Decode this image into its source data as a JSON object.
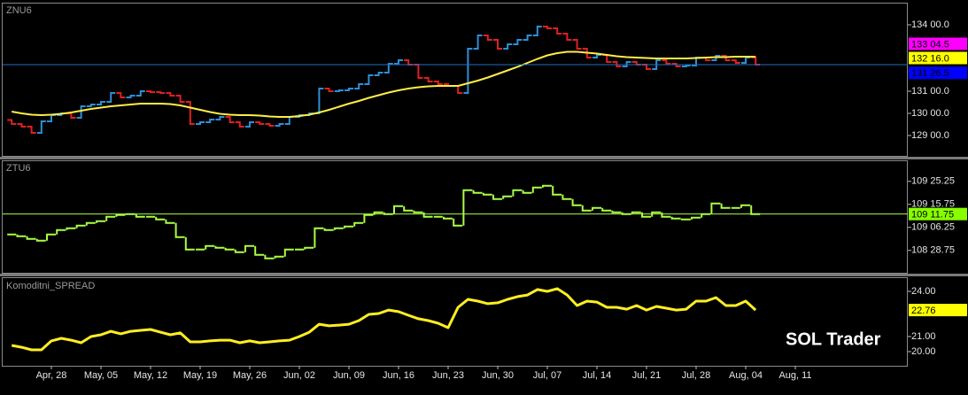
{
  "chart_data": [
    {
      "type": "ohlc",
      "title": "ZNU6",
      "categories": [
        null,
        null,
        null,
        null,
        "Apr, 28",
        null,
        null,
        null,
        null,
        "May, 05",
        null,
        null,
        null,
        null,
        "May, 12",
        null,
        null,
        null,
        null,
        "May, 19",
        null,
        null,
        null,
        null,
        "May, 26",
        null,
        null,
        null,
        null,
        "Jun, 02",
        null,
        null,
        null,
        null,
        "Jun, 09",
        null,
        null,
        null,
        null,
        "Jun, 16",
        null,
        null,
        null,
        null,
        "Jun, 23",
        null,
        null,
        null,
        null,
        "Jun, 30",
        null,
        null,
        null,
        null,
        "Jul, 07",
        null,
        null,
        null,
        null,
        "Jul, 14",
        null,
        null,
        null,
        null,
        "Jul, 21",
        null,
        null,
        null,
        null,
        "Jul, 28",
        null,
        null,
        null,
        null,
        "Aug, 04",
        null,
        null,
        null,
        null,
        "Aug, 11"
      ],
      "open": [
        129.7,
        129.52,
        129.4,
        129.12,
        129.64,
        129.92,
        130.0,
        129.8,
        130.32,
        130.4,
        130.52,
        130.92,
        130.72,
        130.8,
        131.0,
        130.96,
        130.92,
        130.8,
        130.52,
        129.52,
        129.6,
        129.72,
        129.84,
        129.6,
        129.4,
        129.6,
        129.52,
        129.44,
        129.52,
        129.84,
        129.92,
        130.0,
        131.12,
        131.0,
        131.04,
        131.12,
        131.32,
        131.72,
        131.84,
        132.24,
        132.4,
        132.2,
        131.6,
        131.44,
        131.32,
        131.24,
        130.92,
        132.92,
        133.52,
        133.32,
        132.92,
        133.12,
        133.32,
        133.52,
        133.92,
        133.84,
        133.6,
        133.32,
        132.92,
        132.52,
        132.64,
        132.32,
        132.12,
        132.32,
        132.2,
        132.0,
        132.4,
        132.24,
        132.12,
        132.16,
        132.52,
        132.4,
        132.6,
        132.4,
        132.28,
        132.52,
        null,
        null,
        null,
        null
      ],
      "close": [
        129.52,
        129.4,
        129.12,
        129.64,
        129.92,
        130.0,
        129.8,
        130.32,
        130.4,
        130.52,
        130.92,
        130.72,
        130.8,
        131.0,
        130.96,
        130.92,
        130.8,
        130.52,
        129.52,
        129.6,
        129.72,
        129.84,
        129.6,
        129.4,
        129.6,
        129.52,
        129.44,
        129.52,
        129.84,
        129.92,
        130.0,
        131.12,
        131.0,
        131.04,
        131.12,
        131.32,
        131.72,
        131.84,
        132.24,
        132.4,
        132.2,
        131.6,
        131.44,
        131.32,
        131.24,
        130.92,
        132.92,
        133.52,
        133.32,
        132.92,
        133.12,
        133.32,
        133.52,
        133.92,
        133.84,
        133.6,
        133.32,
        132.92,
        132.52,
        132.64,
        132.32,
        132.12,
        132.32,
        132.2,
        132.0,
        132.4,
        132.24,
        132.12,
        132.16,
        132.52,
        132.4,
        132.6,
        132.4,
        132.28,
        132.52,
        132.2,
        null,
        null,
        null,
        null
      ],
      "up_color": "#2e8fd8",
      "down_color": "#e02020",
      "line_color": "#1e6fc8",
      "ma": {
        "color": "#ffee44",
        "values": [
          130.08,
          130.0,
          129.94,
          129.92,
          129.94,
          129.98,
          130.04,
          130.12,
          130.2,
          130.26,
          130.32,
          130.36,
          130.4,
          130.44,
          130.44,
          130.44,
          130.42,
          130.36,
          130.26,
          130.16,
          130.06,
          129.98,
          129.94,
          129.92,
          129.92,
          129.9,
          129.86,
          129.84,
          129.84,
          129.88,
          129.94,
          130.04,
          130.16,
          130.3,
          130.44,
          130.56,
          130.7,
          130.82,
          130.94,
          131.04,
          131.12,
          131.18,
          131.22,
          131.24,
          131.24,
          131.24,
          131.36,
          131.48,
          131.62,
          131.78,
          131.94,
          132.1,
          132.28,
          132.46,
          132.62,
          132.72,
          132.78,
          132.78,
          132.74,
          132.7,
          132.64,
          132.58,
          132.54,
          132.52,
          132.5,
          132.48,
          132.48,
          132.48,
          132.48,
          132.5,
          132.52,
          132.54,
          132.54,
          132.56,
          132.56,
          132.56,
          null,
          null,
          null,
          null
        ]
      },
      "ylim": [
        128.08,
        134.92
      ],
      "yticks": [
        {
          "value": 129,
          "label": "129 00.0"
        },
        {
          "value": 130,
          "label": "130 00.0"
        },
        {
          "value": 131,
          "label": "131 00.0"
        },
        {
          "value": 134,
          "label": "134 00.0"
        }
      ],
      "price_labels": [
        {
          "value": 133.140625,
          "label": "133 04.5",
          "color": "#ff00ff"
        },
        {
          "value": 132.5,
          "label": "132 16.0",
          "color": "#ffff00"
        },
        {
          "value": 131.828125,
          "label": "131 26.5",
          "color": "#0000ff"
        }
      ]
    },
    {
      "type": "step",
      "title": "ZTU6",
      "color": "#aaff44",
      "values": [
        109.104,
        109.081,
        109.047,
        109.024,
        109.104,
        109.161,
        109.184,
        109.218,
        109.252,
        109.275,
        109.332,
        109.355,
        109.367,
        109.332,
        109.332,
        109.298,
        109.252,
        109.07,
        108.91,
        108.91,
        108.956,
        108.933,
        108.91,
        108.876,
        108.956,
        108.841,
        108.796,
        108.819,
        108.91,
        108.91,
        108.933,
        109.184,
        109.161,
        109.184,
        109.207,
        109.252,
        109.355,
        109.389,
        109.367,
        109.469,
        109.412,
        109.389,
        109.332,
        109.332,
        109.309,
        109.218,
        109.675,
        109.641,
        109.618,
        109.561,
        109.595,
        109.675,
        109.641,
        109.709,
        109.732,
        109.618,
        109.561,
        109.481,
        109.412,
        109.446,
        109.412,
        109.389,
        109.367,
        109.389,
        109.332,
        109.389,
        109.332,
        109.309,
        109.298,
        109.321,
        109.367,
        109.504,
        109.446,
        109.446,
        109.481,
        109.367,
        null,
        null,
        null,
        null
      ],
      "ylim": [
        108.61,
        110.06
      ],
      "yticks": [
        {
          "value": 108.8984375,
          "label": "108 28.75"
        },
        {
          "value": 109.1953125,
          "label": "109 06.25"
        },
        {
          "value": 109.4921875,
          "label": "109 15.75"
        },
        {
          "value": 109.7890625,
          "label": "109 25.25"
        }
      ],
      "last_label": {
        "value": 109.3671875,
        "label": "109 11.75",
        "color": "#88ff00"
      }
    },
    {
      "type": "line",
      "title": "Komoditni_SPREAD",
      "color": "#ffee22",
      "values": [
        20.41,
        20.29,
        20.12,
        20.12,
        20.71,
        20.88,
        20.76,
        20.59,
        21.0,
        21.12,
        21.35,
        21.18,
        21.35,
        21.41,
        21.47,
        21.29,
        21.12,
        21.24,
        20.65,
        20.65,
        20.71,
        20.76,
        20.76,
        20.59,
        20.71,
        20.59,
        20.65,
        20.71,
        20.76,
        21.0,
        21.29,
        21.82,
        21.71,
        21.76,
        21.82,
        22.06,
        22.47,
        22.53,
        22.76,
        22.65,
        22.41,
        22.18,
        22.06,
        21.88,
        21.59,
        22.94,
        23.47,
        23.35,
        23.18,
        23.24,
        23.47,
        23.65,
        23.76,
        24.12,
        24.0,
        24.18,
        23.76,
        23.06,
        23.35,
        23.29,
        22.94,
        22.94,
        22.82,
        23.06,
        22.76,
        23.0,
        22.88,
        22.76,
        22.82,
        23.35,
        23.35,
        23.59,
        23.06,
        23.06,
        23.35,
        22.76,
        null,
        null,
        null,
        null
      ],
      "ylim": [
        19.06,
        24.94
      ],
      "yticks": [
        {
          "value": 20,
          "label": "20.00"
        },
        {
          "value": 21,
          "label": "21.00"
        },
        {
          "value": 24,
          "label": "24.00"
        }
      ],
      "last_value": 22.76,
      "last_color": "#ffff00",
      "watermark": "SOL Trader"
    }
  ]
}
